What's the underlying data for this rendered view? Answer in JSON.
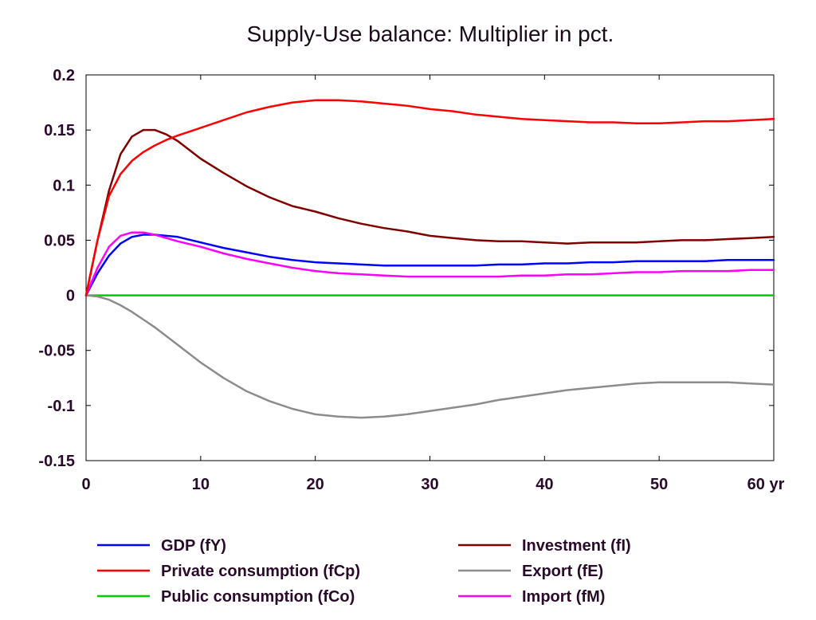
{
  "chart_data": {
    "type": "line",
    "title": "Supply-Use balance: Multiplier in pct.",
    "xlabel": "",
    "ylabel": "",
    "x_unit": "yr",
    "xlim": [
      0,
      60
    ],
    "ylim": [
      -0.15,
      0.2
    ],
    "x_ticks": [
      0,
      10,
      20,
      30,
      40,
      50,
      60
    ],
    "x_tick_labels": [
      "0",
      "10",
      "20",
      "30",
      "40",
      "50",
      "60 yr"
    ],
    "y_ticks": [
      -0.15,
      -0.1,
      -0.05,
      0,
      0.05,
      0.1,
      0.15,
      0.2
    ],
    "y_tick_labels": [
      "-0.15",
      "-0.1",
      "-0.05",
      "0",
      "0.05",
      "0.1",
      "0.15",
      "0.2"
    ],
    "grid": false,
    "legend_position": "bottom",
    "x": [
      0,
      1,
      2,
      3,
      4,
      5,
      6,
      7,
      8,
      10,
      12,
      14,
      16,
      18,
      20,
      22,
      24,
      26,
      28,
      30,
      32,
      34,
      36,
      38,
      40,
      42,
      44,
      46,
      48,
      50,
      52,
      54,
      56,
      58,
      60
    ],
    "series": [
      {
        "name": "GDP (fY)",
        "color": "#0000ff",
        "values": [
          0,
          0.02,
          0.036,
          0.047,
          0.053,
          0.055,
          0.055,
          0.054,
          0.053,
          0.048,
          0.043,
          0.039,
          0.035,
          0.032,
          0.03,
          0.029,
          0.028,
          0.027,
          0.027,
          0.027,
          0.027,
          0.027,
          0.028,
          0.028,
          0.029,
          0.029,
          0.03,
          0.03,
          0.031,
          0.031,
          0.031,
          0.031,
          0.032,
          0.032,
          0.032
        ]
      },
      {
        "name": "Private consumption (fCp)",
        "color": "#ff0000",
        "values": [
          0,
          0.05,
          0.09,
          0.11,
          0.122,
          0.13,
          0.136,
          0.141,
          0.145,
          0.152,
          0.159,
          0.166,
          0.171,
          0.175,
          0.177,
          0.177,
          0.176,
          0.174,
          0.172,
          0.169,
          0.167,
          0.164,
          0.162,
          0.16,
          0.159,
          0.158,
          0.157,
          0.157,
          0.156,
          0.156,
          0.157,
          0.158,
          0.158,
          0.159,
          0.16
        ]
      },
      {
        "name": "Public consumption (fCo)",
        "color": "#00cc00",
        "values": [
          0,
          0,
          0,
          0,
          0,
          0,
          0,
          0,
          0,
          0,
          0,
          0,
          0,
          0,
          0,
          0,
          0,
          0,
          0,
          0,
          0,
          0,
          0,
          0,
          0,
          0,
          0,
          0,
          0,
          0,
          0,
          0,
          0,
          0,
          0
        ]
      },
      {
        "name": "Investment (fI)",
        "color": "#800000",
        "values": [
          0,
          0.05,
          0.095,
          0.128,
          0.144,
          0.15,
          0.15,
          0.146,
          0.14,
          0.124,
          0.111,
          0.099,
          0.089,
          0.081,
          0.076,
          0.07,
          0.065,
          0.061,
          0.058,
          0.054,
          0.052,
          0.05,
          0.049,
          0.049,
          0.048,
          0.047,
          0.048,
          0.048,
          0.048,
          0.049,
          0.05,
          0.05,
          0.051,
          0.052,
          0.053
        ]
      },
      {
        "name": "Export (fE)",
        "color": "#8c8c8c",
        "values": [
          0,
          -0.001,
          -0.004,
          -0.009,
          -0.015,
          -0.022,
          -0.029,
          -0.037,
          -0.045,
          -0.061,
          -0.075,
          -0.087,
          -0.096,
          -0.103,
          -0.108,
          -0.11,
          -0.111,
          -0.11,
          -0.108,
          -0.105,
          -0.102,
          -0.099,
          -0.095,
          -0.092,
          -0.089,
          -0.086,
          -0.084,
          -0.082,
          -0.08,
          -0.079,
          -0.079,
          -0.079,
          -0.079,
          -0.08,
          -0.081
        ]
      },
      {
        "name": "Import (fM)",
        "color": "#ff00ff",
        "values": [
          0,
          0.025,
          0.044,
          0.054,
          0.057,
          0.057,
          0.055,
          0.052,
          0.049,
          0.044,
          0.038,
          0.033,
          0.029,
          0.025,
          0.022,
          0.02,
          0.019,
          0.018,
          0.017,
          0.017,
          0.017,
          0.017,
          0.017,
          0.018,
          0.018,
          0.019,
          0.019,
          0.02,
          0.021,
          0.021,
          0.022,
          0.022,
          0.022,
          0.023,
          0.023
        ]
      }
    ]
  }
}
